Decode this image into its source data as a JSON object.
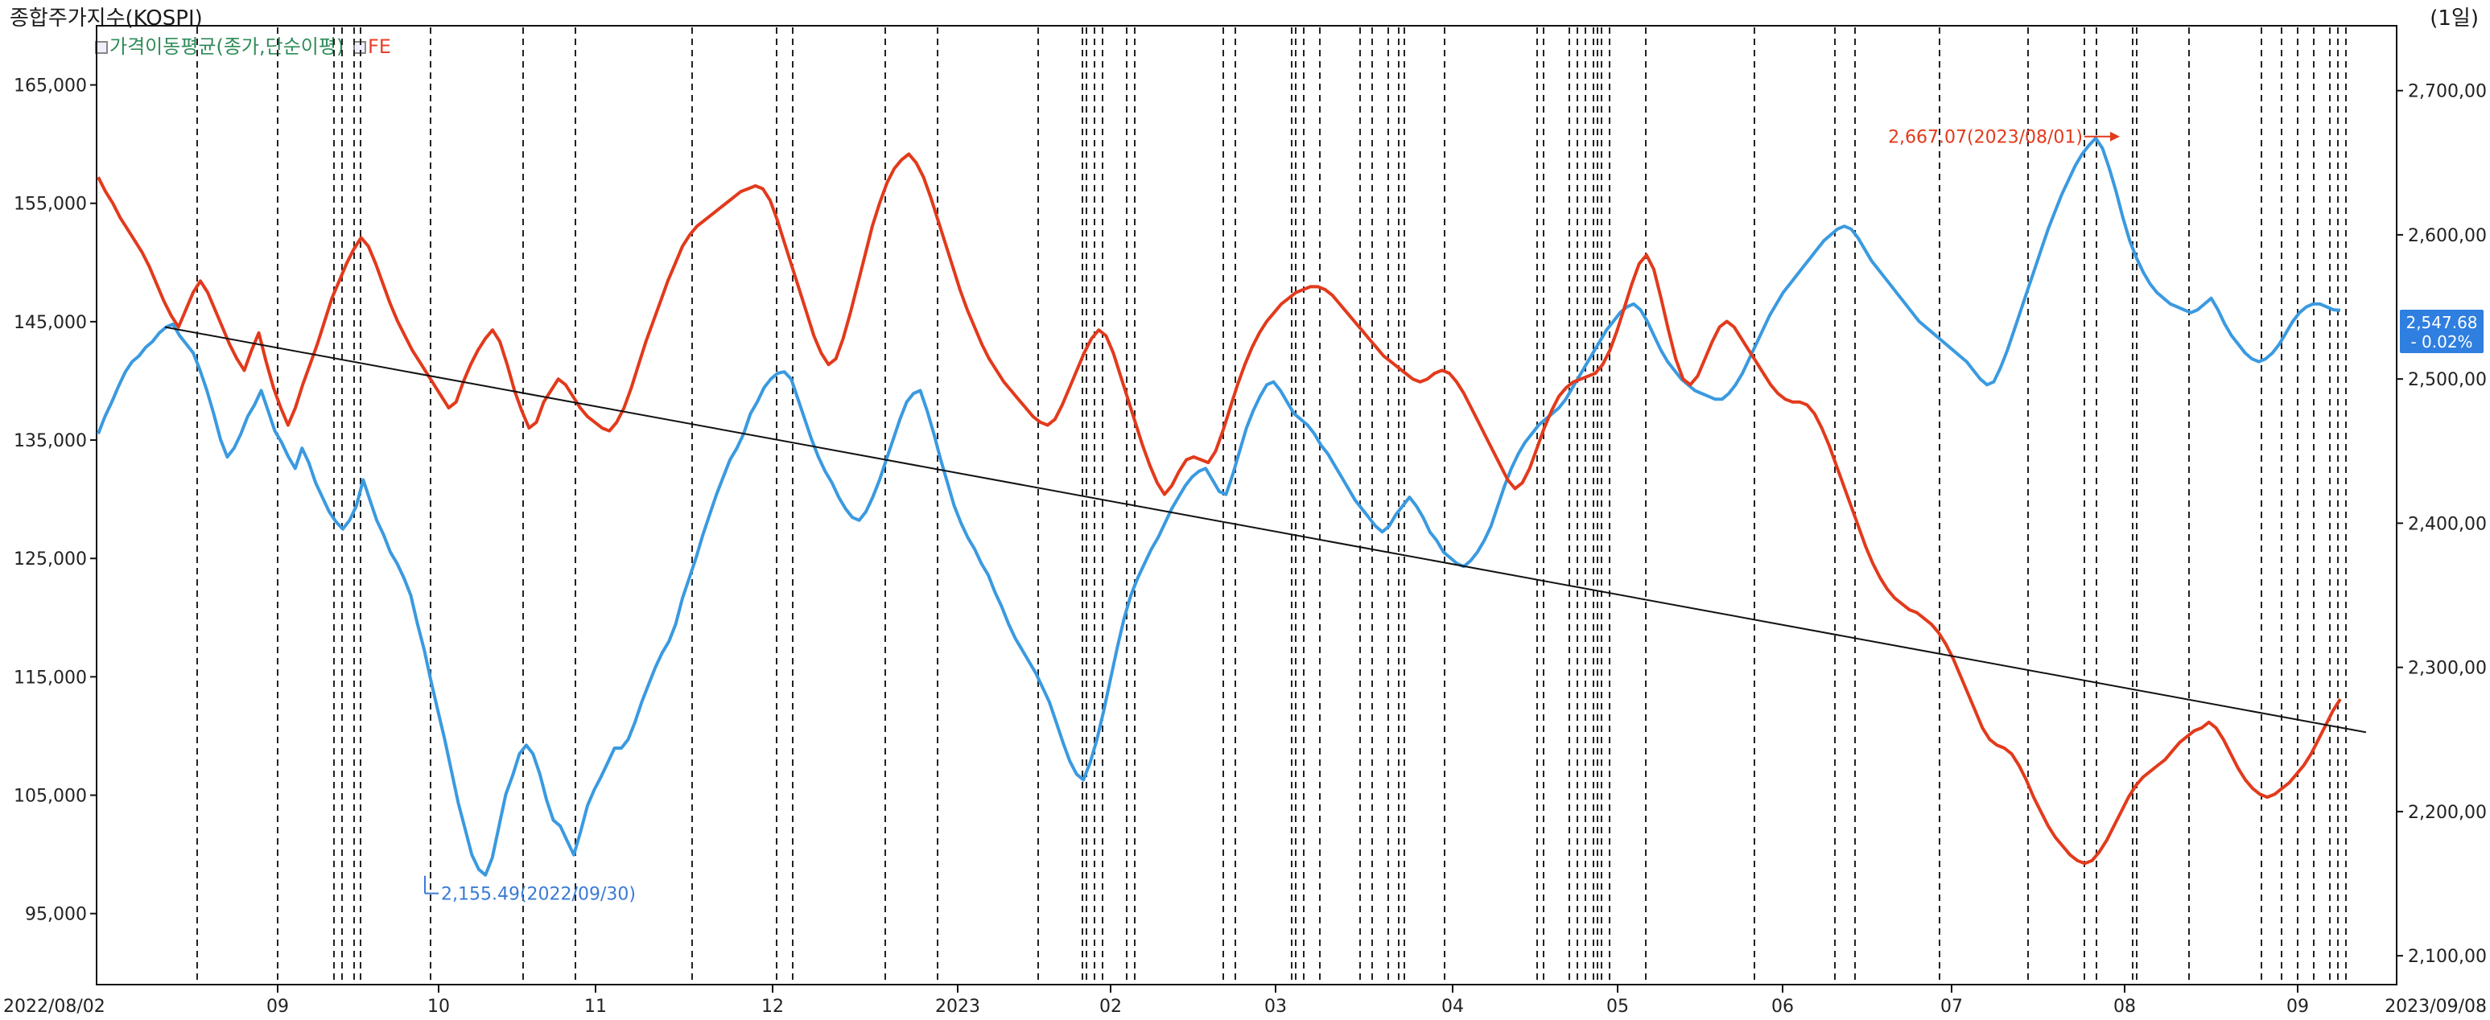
{
  "header": {
    "title": "종합주가지수(KOSPI)",
    "period": "(1일)"
  },
  "legend": [
    {
      "label": "가격이동평균(종가,단순이평)",
      "color": "#2e8b57"
    },
    {
      "label": "FE",
      "color": "#e8402a"
    }
  ],
  "colors": {
    "ma_line": "#3a9ae0",
    "fe_line": "#e23a1c",
    "trend": "#111111",
    "grid": "#111111"
  },
  "chart_data": {
    "type": "line",
    "x_start": "2022/08/02",
    "x_end": "2023/09/08",
    "x_month_labels": [
      "09",
      "10",
      "11",
      "12",
      "2023",
      "02",
      "03",
      "04",
      "05",
      "06",
      "07",
      "08",
      "09"
    ],
    "y_left": {
      "ticks": [
        "165,000",
        "155,000",
        "145,000",
        "135,000",
        "125,000",
        "115,000",
        "105,000",
        "95,000"
      ],
      "range": [
        89000,
        170000
      ]
    },
    "y_right": {
      "ticks": [
        "2,700,00",
        "2,600,00",
        "2,500,00",
        "2,400,00",
        "2,300,00",
        "2,200,00",
        "2,100,00"
      ],
      "range": [
        2080,
        2745
      ]
    },
    "last_value": {
      "value": "2,547.68",
      "change": "- 0.02%"
    },
    "annotations": [
      {
        "label": "2,155.49(2022/09/30)",
        "series": "가격이동평균(종가,단순이평)",
        "value": 2155.49
      },
      {
        "label": "2,667.07(2023/08/01)",
        "series": "FE",
        "value": 2667.07
      }
    ],
    "series": [
      {
        "name": "가격이동평균(종가,단순이평)",
        "axis": "right",
        "values": [
          2462,
          2474,
          2484,
          2495,
          2505,
          2512,
          2516,
          2522,
          2526,
          2532,
          2536,
          2538,
          2530,
          2524,
          2518,
          2506,
          2492,
          2476,
          2458,
          2446,
          2452,
          2462,
          2474,
          2482,
          2492,
          2478,
          2464,
          2456,
          2446,
          2438,
          2452,
          2442,
          2428,
          2418,
          2408,
          2401,
          2396,
          2402,
          2412,
          2430,
          2416,
          2402,
          2392,
          2380,
          2372,
          2362,
          2350,
          2330,
          2312,
          2290,
          2270,
          2250,
          2228,
          2206,
          2188,
          2170,
          2160,
          2156,
          2168,
          2190,
          2212,
          2225,
          2240,
          2246,
          2240,
          2226,
          2208,
          2194,
          2190,
          2180,
          2170,
          2186,
          2204,
          2215,
          2224,
          2234,
          2244,
          2244,
          2250,
          2262,
          2276,
          2288,
          2300,
          2310,
          2318,
          2330,
          2348,
          2362,
          2376,
          2392,
          2406,
          2420,
          2432,
          2444,
          2452,
          2462,
          2476,
          2484,
          2494,
          2500,
          2504,
          2505,
          2500,
          2486,
          2472,
          2458,
          2446,
          2436,
          2428,
          2418,
          2410,
          2404,
          2402,
          2408,
          2418,
          2430,
          2444,
          2458,
          2472,
          2484,
          2490,
          2492,
          2478,
          2462,
          2444,
          2428,
          2412,
          2400,
          2390,
          2382,
          2372,
          2364,
          2352,
          2342,
          2330,
          2320,
          2312,
          2304,
          2296,
          2286,
          2276,
          2262,
          2248,
          2235,
          2226,
          2222,
          2234,
          2250,
          2270,
          2292,
          2314,
          2334,
          2350,
          2362,
          2372,
          2382,
          2390,
          2400,
          2410,
          2418,
          2426,
          2432,
          2436,
          2438,
          2430,
          2422,
          2420,
          2434,
          2450,
          2466,
          2478,
          2488,
          2496,
          2498,
          2492,
          2484,
          2476,
          2472,
          2468,
          2462,
          2454,
          2448,
          2440,
          2432,
          2424,
          2416,
          2410,
          2404,
          2398,
          2394,
          2398,
          2406,
          2412,
          2418,
          2412,
          2404,
          2394,
          2388,
          2380,
          2376,
          2372,
          2370,
          2374,
          2380,
          2388,
          2398,
          2412,
          2426,
          2438,
          2448,
          2456,
          2462,
          2468,
          2472,
          2476,
          2480,
          2486,
          2494,
          2502,
          2510,
          2518,
          2526,
          2534,
          2540,
          2546,
          2550,
          2552,
          2548,
          2540,
          2530,
          2520,
          2512,
          2506,
          2500,
          2496,
          2492,
          2490,
          2488,
          2486,
          2486,
          2490,
          2496,
          2504,
          2514,
          2524,
          2534,
          2544,
          2552,
          2560,
          2566,
          2572,
          2578,
          2584,
          2590,
          2596,
          2600,
          2604,
          2606,
          2604,
          2598,
          2590,
          2582,
          2576,
          2570,
          2564,
          2558,
          2552,
          2546,
          2540,
          2536,
          2532,
          2528,
          2524,
          2520,
          2516,
          2512,
          2506,
          2500,
          2496,
          2498,
          2508,
          2520,
          2534,
          2548,
          2562,
          2576,
          2590,
          2604,
          2616,
          2628,
          2638,
          2648,
          2656,
          2662,
          2667,
          2660,
          2646,
          2630,
          2612,
          2596,
          2584,
          2574,
          2566,
          2560,
          2556,
          2552,
          2550,
          2548,
          2546,
          2548,
          2552,
          2556,
          2548,
          2538,
          2530,
          2524,
          2518,
          2514,
          2512,
          2514,
          2518,
          2524,
          2532,
          2540,
          2546,
          2550,
          2552,
          2552,
          2550,
          2548,
          2547.68
        ]
      },
      {
        "name": "FE",
        "axis": "right",
        "values": [
          2640,
          2630,
          2622,
          2612,
          2604,
          2596,
          2588,
          2578,
          2566,
          2554,
          2544,
          2536,
          2548,
          2560,
          2568,
          2560,
          2548,
          2536,
          2524,
          2514,
          2506,
          2520,
          2532,
          2512,
          2494,
          2480,
          2468,
          2480,
          2496,
          2510,
          2524,
          2540,
          2556,
          2568,
          2580,
          2590,
          2598,
          2592,
          2580,
          2566,
          2552,
          2540,
          2530,
          2520,
          2512,
          2504,
          2496,
          2488,
          2480,
          2484,
          2498,
          2510,
          2520,
          2528,
          2534,
          2526,
          2510,
          2492,
          2478,
          2466,
          2470,
          2484,
          2492,
          2500,
          2496,
          2488,
          2480,
          2474,
          2470,
          2466,
          2464,
          2470,
          2480,
          2494,
          2510,
          2526,
          2540,
          2554,
          2568,
          2580,
          2592,
          2600,
          2606,
          2610,
          2614,
          2618,
          2622,
          2626,
          2630,
          2632,
          2634,
          2632,
          2624,
          2610,
          2594,
          2578,
          2562,
          2546,
          2530,
          2518,
          2510,
          2514,
          2528,
          2546,
          2566,
          2586,
          2606,
          2622,
          2636,
          2646,
          2652,
          2656,
          2650,
          2640,
          2626,
          2610,
          2594,
          2578,
          2562,
          2548,
          2536,
          2524,
          2514,
          2506,
          2498,
          2492,
          2486,
          2480,
          2474,
          2470,
          2468,
          2472,
          2482,
          2494,
          2506,
          2518,
          2528,
          2534,
          2530,
          2518,
          2502,
          2486,
          2470,
          2454,
          2440,
          2428,
          2420,
          2426,
          2436,
          2444,
          2446,
          2444,
          2442,
          2450,
          2464,
          2480,
          2496,
          2510,
          2522,
          2532,
          2540,
          2546,
          2552,
          2556,
          2560,
          2562,
          2564,
          2564,
          2562,
          2558,
          2552,
          2546,
          2540,
          2534,
          2528,
          2522,
          2516,
          2512,
          2508,
          2504,
          2500,
          2498,
          2500,
          2504,
          2506,
          2504,
          2498,
          2490,
          2480,
          2470,
          2460,
          2450,
          2440,
          2430,
          2424,
          2428,
          2438,
          2452,
          2466,
          2478,
          2488,
          2494,
          2498,
          2500,
          2502,
          2504,
          2510,
          2520,
          2534,
          2550,
          2566,
          2580,
          2586,
          2576,
          2556,
          2534,
          2514,
          2500,
          2496,
          2502,
          2514,
          2526,
          2536,
          2540,
          2536,
          2528,
          2520,
          2512,
          2504,
          2496,
          2490,
          2486,
          2484,
          2484,
          2482,
          2476,
          2466,
          2454,
          2440,
          2426,
          2412,
          2398,
          2384,
          2372,
          2362,
          2354,
          2348,
          2344,
          2340,
          2338,
          2334,
          2330,
          2324,
          2316,
          2306,
          2294,
          2282,
          2270,
          2258,
          2250,
          2246,
          2244,
          2240,
          2232,
          2222,
          2210,
          2200,
          2190,
          2182,
          2176,
          2170,
          2166,
          2164,
          2166,
          2172,
          2180,
          2190,
          2200,
          2210,
          2218,
          2224,
          2228,
          2232,
          2236,
          2242,
          2248,
          2252,
          2256,
          2258,
          2262,
          2258,
          2250,
          2240,
          2230,
          2222,
          2216,
          2212,
          2210,
          2212,
          2216,
          2220,
          2226,
          2232,
          2240,
          2250,
          2260,
          2270,
          2278
        ]
      }
    ],
    "trendline": {
      "start_value": 2536,
      "end_value": 2255
    },
    "vertical_event_dates_count": 60
  }
}
